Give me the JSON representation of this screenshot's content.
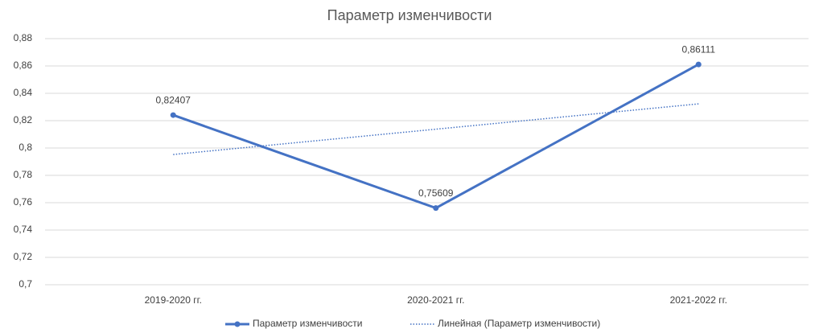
{
  "chart_data": {
    "type": "line",
    "title": "Параметр изменчивости",
    "categories": [
      "2019-2020 гг.",
      "2020-2021 гг.",
      "2021-2022 гг."
    ],
    "series": [
      {
        "name": "Параметр изменчивости",
        "color": "#4472c4",
        "values": [
          0.82407,
          0.75609,
          0.86111
        ],
        "value_labels": [
          "0,82407",
          "0,75609",
          "0,86111"
        ]
      },
      {
        "name": "Линейная (Параметр изменчивости)",
        "color": "#4472c4",
        "style": "dotted",
        "values": [
          0.795237,
          0.813757,
          0.832277
        ]
      }
    ],
    "ylim": [
      0.7,
      0.88
    ],
    "yticks": [
      {
        "value": 0.7,
        "label": "0,7"
      },
      {
        "value": 0.72,
        "label": "0,72"
      },
      {
        "value": 0.74,
        "label": "0,74"
      },
      {
        "value": 0.76,
        "label": "0,76"
      },
      {
        "value": 0.78,
        "label": "0,78"
      },
      {
        "value": 0.8,
        "label": "0,8"
      },
      {
        "value": 0.82,
        "label": "0,82"
      },
      {
        "value": 0.84,
        "label": "0,84"
      },
      {
        "value": 0.86,
        "label": "0,86"
      },
      {
        "value": 0.88,
        "label": "0,88"
      }
    ],
    "grid": true,
    "legend": "bottom"
  }
}
